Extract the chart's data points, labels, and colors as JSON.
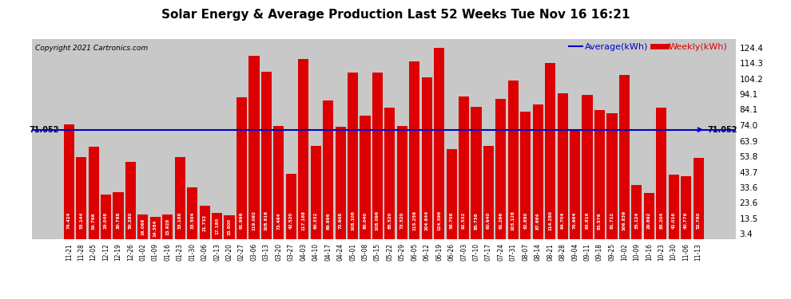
{
  "title": "Solar Energy & Average Production Last 52 Weeks Tue Nov 16 16:21",
  "copyright": "Copyright 2021 Cartronics.com",
  "average_value": 71.052,
  "average_label": "71.052",
  "bar_color": "#dd0000",
  "average_line_color": "#0000cc",
  "background_color": "#ffffff",
  "plot_bg_color": "#c8c8c8",
  "legend_avg": "Average(kWh)",
  "legend_weekly": "Weekly(kWh)",
  "ylabel_right_values": [
    124.4,
    114.3,
    104.2,
    94.1,
    84.1,
    74.0,
    63.9,
    53.8,
    43.7,
    33.6,
    23.6,
    13.5,
    3.4
  ],
  "categories": [
    "11-21",
    "11-28",
    "12-05",
    "12-12",
    "12-19",
    "12-26",
    "01-02",
    "01-09",
    "01-16",
    "01-23",
    "01-30",
    "02-06",
    "02-13",
    "02-20",
    "02-27",
    "03-06",
    "03-13",
    "03-20",
    "03-27",
    "04-03",
    "04-10",
    "04-17",
    "04-24",
    "05-01",
    "05-08",
    "05-15",
    "05-22",
    "05-29",
    "06-05",
    "06-12",
    "06-19",
    "06-26",
    "07-03",
    "07-10",
    "07-17",
    "07-24",
    "07-31",
    "08-07",
    "08-14",
    "08-21",
    "08-28",
    "09-04",
    "09-11",
    "09-18",
    "09-25",
    "10-02",
    "10-09",
    "10-16",
    "10-23",
    "10-30",
    "11-06",
    "11-13"
  ],
  "values": [
    74.424,
    53.144,
    59.768,
    29.048,
    30.768,
    50.38,
    16.068,
    14.384,
    15.928,
    53.168,
    33.504,
    21.732,
    17.18,
    15.6,
    91.996,
    119.092,
    108.616,
    73.464,
    42.52,
    117.168,
    60.332,
    89.896,
    72.908,
    108.108,
    80.04,
    108.096,
    85.52,
    73.52,
    115.256,
    104.844,
    124.396,
    58.708,
    92.532,
    85.736,
    60.64,
    91.296,
    103.128,
    82.88,
    87.664,
    114.28,
    94.704,
    70.664,
    93.816,
    83.576,
    81.712,
    106.836,
    35.124,
    29.892,
    85.204,
    42.016,
    40.776,
    52.76
  ],
  "ymin": 0,
  "ymax": 130,
  "grid_color": "white",
  "grid_style": "--",
  "bar_width": 0.85,
  "value_fontsize": 4.0,
  "xtick_fontsize": 5.5,
  "ytick_fontsize": 7.5,
  "title_fontsize": 11,
  "copyright_fontsize": 6.5,
  "legend_fontsize": 8
}
